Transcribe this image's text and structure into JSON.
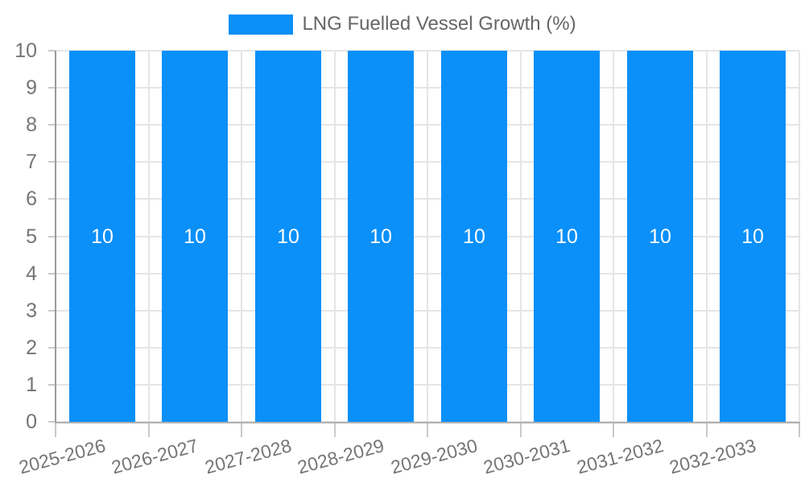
{
  "legend": {
    "label": "LNG Fuelled Vessel Growth (%)"
  },
  "chart_data": {
    "type": "bar",
    "title": "LNG Fuelled Vessel Growth (%)",
    "categories": [
      "2025-2026",
      "2026-2027",
      "2027-2028",
      "2028-2029",
      "2029-2030",
      "2030-2031",
      "2031-2032",
      "2032-2033"
    ],
    "series": [
      {
        "name": "LNG Fuelled Vessel Growth (%)",
        "values": [
          10,
          10,
          10,
          10,
          10,
          10,
          10,
          10
        ]
      }
    ],
    "bar_value_labels": [
      "10",
      "10",
      "10",
      "10",
      "10",
      "10",
      "10",
      "10"
    ],
    "xlabel": "",
    "ylabel": "",
    "ylim": [
      0,
      10
    ],
    "yticks": [
      0,
      1,
      2,
      3,
      4,
      5,
      6,
      7,
      8,
      9,
      10
    ],
    "grid": true,
    "legend_position": "top",
    "x_label_rotation_deg": -15,
    "colors": {
      "bar": "#0a90f8",
      "bar_label": "#ffffff",
      "tick_label": "#757575",
      "legend_text": "#666666",
      "gridline": "#e5e5e5",
      "axis_line": "#9a9a9a"
    }
  }
}
